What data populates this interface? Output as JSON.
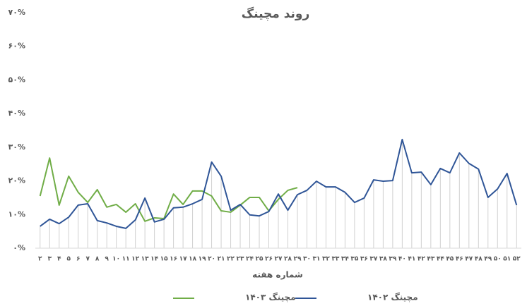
{
  "chart_data": {
    "type": "line",
    "title": "روند مچینگ",
    "x_label": "شماره هفته",
    "categories": [
      "۲",
      "۳",
      "۴",
      "۵",
      "۶",
      "۷",
      "۸",
      "۹",
      "۱۰",
      "۱۱",
      "۱۲",
      "۱۳",
      "۱۴",
      "۱۵",
      "۱۶",
      "۱۷",
      "۱۸",
      "۱۹",
      "۲۰",
      "۲۱",
      "۲۲",
      "۲۳",
      "۲۴",
      "۲۵",
      "۲۶",
      "۲۷",
      "۲۸",
      "۲۹",
      "۳۰",
      "۳۱",
      "۳۲",
      "۳۳",
      "۳۴",
      "۳۵",
      "۳۶",
      "۳۷",
      "۳۸",
      "۳۹",
      "۴۰",
      "۴۱",
      "۴۲",
      "۴۳",
      "۴۴",
      "۴۵",
      "۴۶",
      "۴۷",
      "۴۸",
      "۴۹",
      "۵۰",
      "۵۱",
      "۵۲"
    ],
    "series": [
      {
        "name": "مچینگ ۱۴۰۳",
        "color": "#70ad47",
        "values": [
          15.5,
          26.8,
          12.8,
          21.4,
          16.6,
          13.6,
          17.4,
          12.2,
          13.0,
          10.7,
          13.2,
          8.0,
          9.0,
          8.8,
          16.1,
          13.0,
          17.0,
          17.0,
          15.5,
          11.1,
          10.7,
          12.8,
          15.1,
          15.1,
          11.1,
          14.5,
          17.2,
          18.0,
          null,
          null,
          null,
          null,
          null,
          null,
          null,
          null,
          null,
          null,
          null,
          null,
          null,
          null,
          null,
          null,
          null,
          null,
          null,
          null,
          null,
          null,
          null
        ]
      },
      {
        "name": "مچینگ ۱۴۰۲",
        "color": "#2f5597",
        "values": [
          6.5,
          8.6,
          7.3,
          9.2,
          12.8,
          13.2,
          8.2,
          7.5,
          6.5,
          5.9,
          8.4,
          14.9,
          7.8,
          8.6,
          12.0,
          12.2,
          13.2,
          14.5,
          25.6,
          21.4,
          11.3,
          13.0,
          9.9,
          9.6,
          10.9,
          16.1,
          11.3,
          15.9,
          17.2,
          19.9,
          18.2,
          18.2,
          16.6,
          13.6,
          14.9,
          20.3,
          19.9,
          20.1,
          32.3,
          22.4,
          22.6,
          18.9,
          23.7,
          22.4,
          28.3,
          25.2,
          23.5,
          15.1,
          17.6,
          22.2,
          12.8
        ]
      }
    ],
    "ylim": [
      0,
      70
    ],
    "yticks": [
      {
        "value": 0,
        "label": "۰%"
      },
      {
        "value": 10,
        "label": "۱۰%"
      },
      {
        "value": 20,
        "label": "۲۰%"
      },
      {
        "value": 30,
        "label": "۳۰%"
      },
      {
        "value": 40,
        "label": "۴۰%"
      },
      {
        "value": 50,
        "label": "۵۰%"
      },
      {
        "value": 60,
        "label": "۶۰%"
      },
      {
        "value": 70,
        "label": "۷۰%"
      }
    ],
    "grid": false,
    "legend": "bottom"
  }
}
